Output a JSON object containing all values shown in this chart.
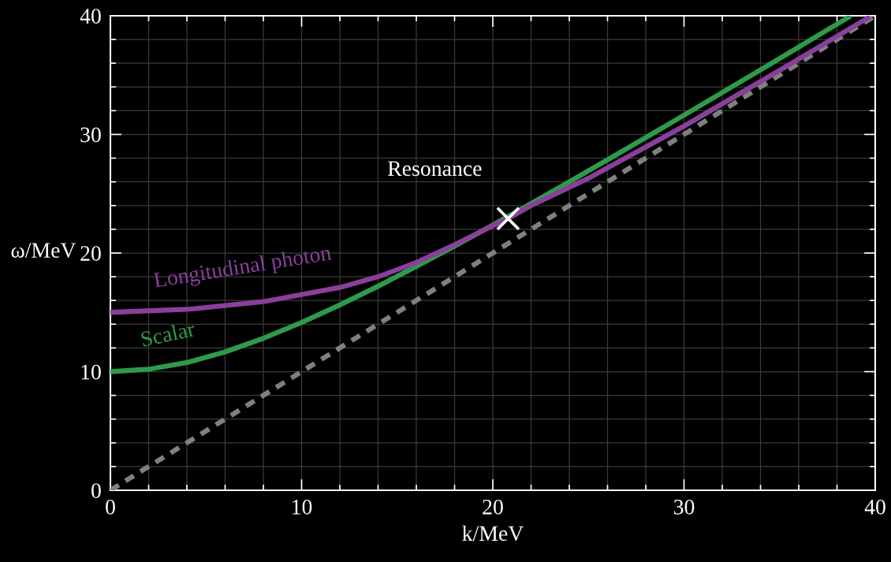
{
  "chart_data": {
    "type": "line",
    "xlabel": "k/MeV",
    "ylabel": "ω/MeV",
    "xlim": [
      0,
      40
    ],
    "ylim": [
      0,
      40
    ],
    "xticks": [
      0,
      {
        "value": 2,
        "label": null
      },
      {
        "value": 4,
        "label": null
      },
      {
        "value": 6,
        "label": null
      },
      {
        "value": 8,
        "label": null
      },
      10,
      {
        "value": 12,
        "label": null
      },
      {
        "value": 14,
        "label": null
      },
      {
        "value": 16,
        "label": null
      },
      {
        "value": 18,
        "label": null
      },
      20,
      {
        "value": 22,
        "label": null
      },
      {
        "value": 24,
        "label": null
      },
      {
        "value": 26,
        "label": null
      },
      {
        "value": 28,
        "label": null
      },
      30,
      {
        "value": 32,
        "label": null
      },
      {
        "value": 34,
        "label": null
      },
      {
        "value": 36,
        "label": null
      },
      {
        "value": 38,
        "label": null
      },
      40
    ],
    "yticks": [
      0,
      {
        "value": 2,
        "label": null
      },
      {
        "value": 4,
        "label": null
      },
      {
        "value": 6,
        "label": null
      },
      {
        "value": 8,
        "label": null
      },
      10,
      {
        "value": 12,
        "label": null
      },
      {
        "value": 14,
        "label": null
      },
      {
        "value": 16,
        "label": null
      },
      {
        "value": 18,
        "label": null
      },
      20,
      {
        "value": 22,
        "label": null
      },
      {
        "value": 24,
        "label": null
      },
      {
        "value": 26,
        "label": null
      },
      {
        "value": 28,
        "label": null
      },
      30,
      {
        "value": 32,
        "label": null
      },
      {
        "value": 34,
        "label": null
      },
      {
        "value": 36,
        "label": null
      },
      {
        "value": 38,
        "label": null
      },
      40
    ],
    "grid": true,
    "series": [
      {
        "name": "Longitudinal photon",
        "color": "#8a3f9c",
        "x": [
          0,
          4,
          8,
          12,
          14,
          16,
          18,
          20,
          20.8,
          22,
          25,
          30,
          35,
          39.6
        ],
        "values": [
          15,
          15.25,
          15.9,
          17.1,
          18.0,
          19.2,
          20.7,
          22.3,
          22.9,
          24.0,
          26.3,
          30.7,
          35.4,
          39.8
        ]
      },
      {
        "name": "Scalar",
        "color": "#2e9a4a",
        "x": [
          0,
          2,
          4,
          6,
          8,
          10,
          12,
          14,
          16,
          18,
          20,
          22,
          24,
          26,
          28,
          30,
          32,
          34,
          36,
          38,
          38.6
        ],
        "values": [
          10,
          10.2,
          10.77,
          11.66,
          12.81,
          14.14,
          15.62,
          17.2,
          18.87,
          20.59,
          22.36,
          24.17,
          26,
          27.86,
          29.73,
          31.62,
          33.53,
          35.44,
          37.36,
          39.29,
          39.87
        ]
      },
      {
        "color": "#808080",
        "line_style": "dashed",
        "x": [
          0,
          40
        ],
        "values": [
          0,
          40
        ]
      },
      {
        "type": "scatter",
        "color": "#ffffff",
        "marker": "cross",
        "x": [
          20.8
        ],
        "values": [
          22.9
        ]
      }
    ],
    "annotations": [
      {
        "text": "Resonance",
        "x": 20.8,
        "y": 22.9
      }
    ]
  }
}
